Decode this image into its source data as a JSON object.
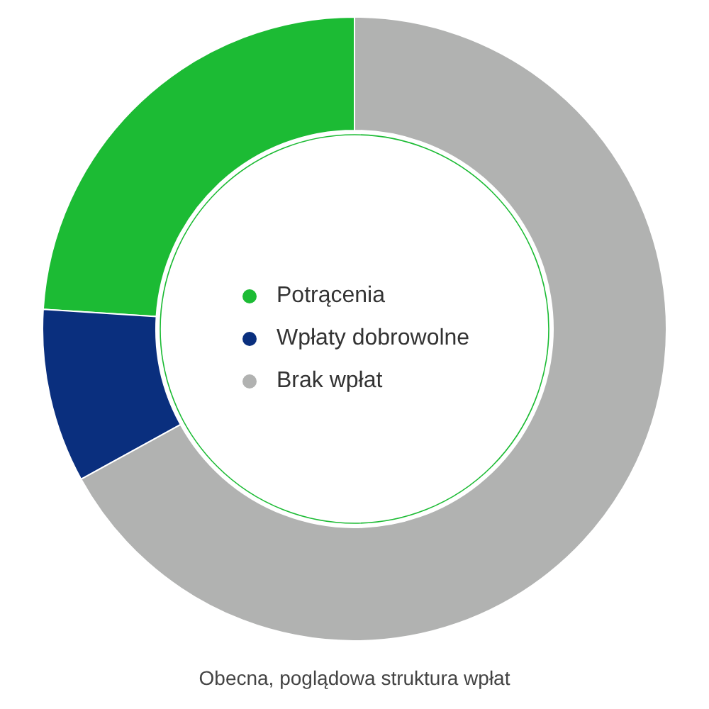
{
  "chart_data": {
    "type": "donut",
    "categories": [
      "Potrącenia",
      "Wpłaty dobrowolne",
      "Brak wpłat"
    ],
    "values": [
      24,
      9,
      67
    ],
    "colors": [
      "#1cbb34",
      "#0a2f7e",
      "#b1b2b1"
    ],
    "legend": "center",
    "annotations": [
      "Obecna, poglądowa struktura wpłat"
    ]
  }
}
